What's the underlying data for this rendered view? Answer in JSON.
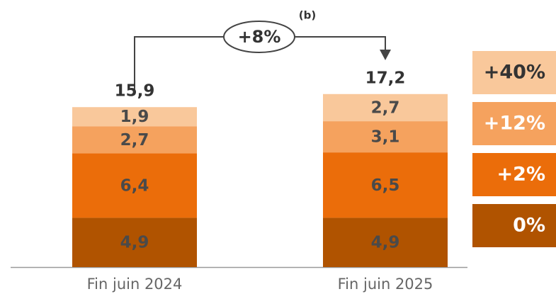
{
  "chart_data": {
    "type": "stacked_bar",
    "categories": [
      "Fin juin 2024",
      "Fin juin 2025"
    ],
    "series": [
      {
        "name": "0%",
        "color": "#b05300",
        "values": [
          4.9,
          4.9
        ],
        "value_labels": [
          "4,9",
          "4,9"
        ]
      },
      {
        "name": "+2%",
        "color": "#eb6d0a",
        "values": [
          6.4,
          6.5
        ],
        "value_labels": [
          "6,4",
          "6,5"
        ]
      },
      {
        "name": "+12%",
        "color": "#f5a25e",
        "values": [
          2.7,
          3.1
        ],
        "value_labels": [
          "2,7",
          "3,1"
        ]
      },
      {
        "name": "+40%",
        "color": "#f9c89b",
        "values": [
          1.9,
          2.7
        ],
        "value_labels": [
          "1,9",
          "2,7"
        ]
      }
    ],
    "totals": [
      15.9,
      17.2
    ],
    "total_labels": [
      "15,9",
      "17,2"
    ],
    "annotation": "+8%",
    "annotation_note": "(b)"
  }
}
